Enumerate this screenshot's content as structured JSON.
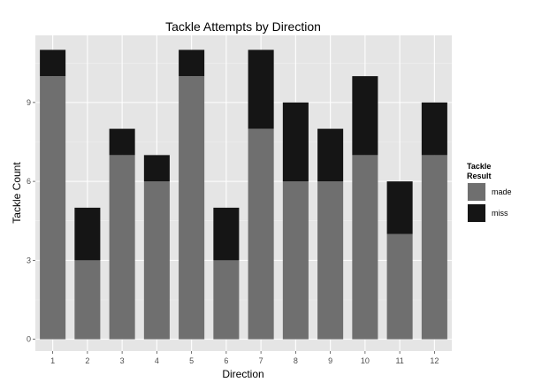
{
  "chart_data": {
    "type": "bar",
    "stacked": true,
    "title": "Tackle Attempts by Direction",
    "xlabel": "Direction",
    "ylabel": "Tackle Count",
    "categories": [
      "1",
      "2",
      "3",
      "4",
      "5",
      "6",
      "7",
      "8",
      "9",
      "10",
      "11",
      "12"
    ],
    "series": [
      {
        "name": "made",
        "color": "#6f6f6f",
        "values": [
          10,
          3,
          7,
          6,
          10,
          3,
          8,
          6,
          6,
          7,
          4,
          7
        ]
      },
      {
        "name": "miss",
        "color": "#151515",
        "values": [
          1,
          2,
          1,
          1,
          1,
          2,
          3,
          3,
          2,
          3,
          2,
          2
        ]
      }
    ],
    "ylim": [
      -0.45,
      11.55
    ],
    "yticks": [
      0,
      3,
      6,
      9
    ],
    "legend": {
      "title_line1": "Tackle",
      "title_line2": "Result",
      "position": "right"
    },
    "grid": true,
    "panel_background": "#e5e5e5",
    "grid_color": "#ffffff"
  }
}
